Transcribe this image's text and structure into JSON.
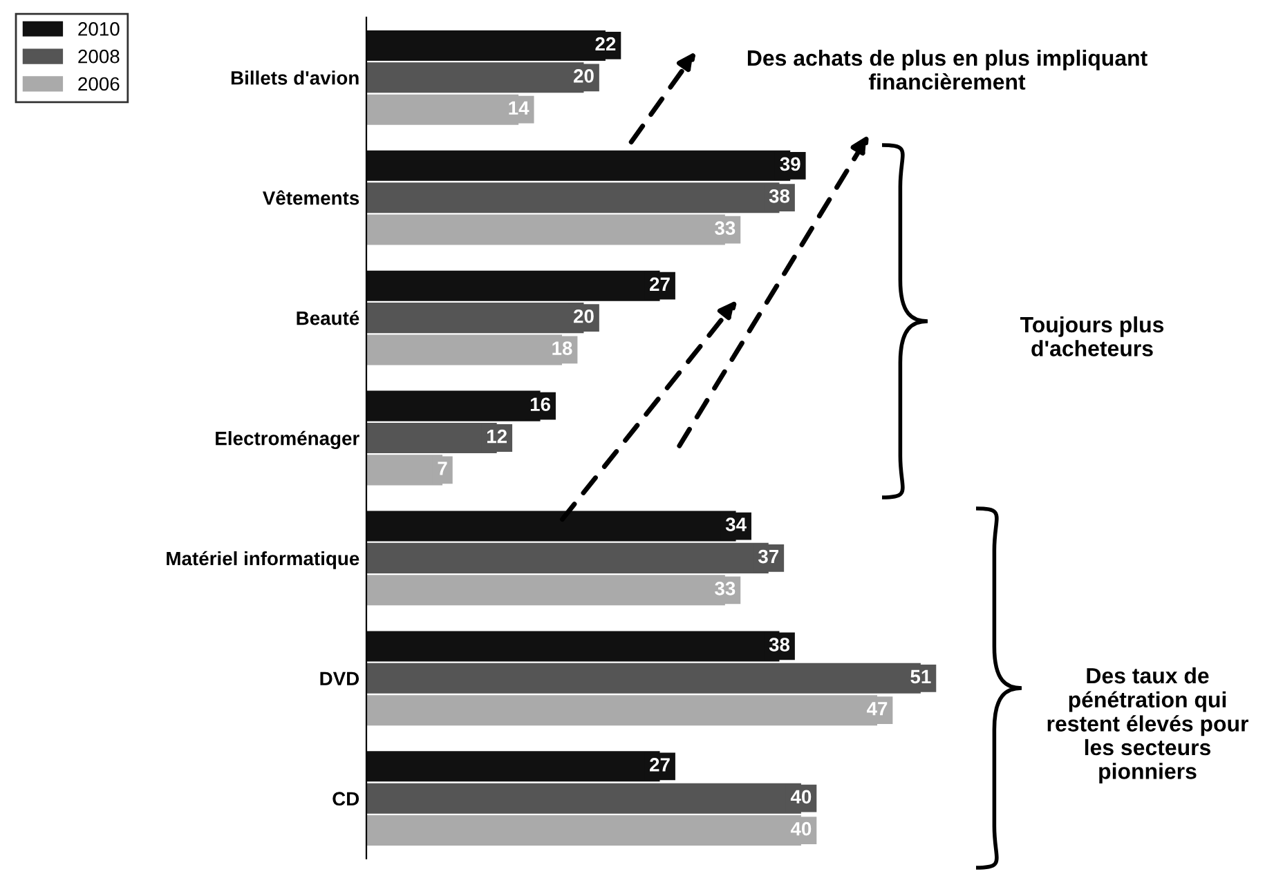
{
  "chart_data": {
    "type": "bar",
    "orientation": "horizontal",
    "categories": [
      "Billets d'avion",
      "Vêtements",
      "Beauté",
      "Electroménager",
      "Matériel informatique",
      "DVD",
      "CD"
    ],
    "series": [
      {
        "name": "2010",
        "color": "#111111",
        "values": [
          22,
          39,
          27,
          16,
          34,
          38,
          27
        ]
      },
      {
        "name": "2008",
        "color": "#555555",
        "values": [
          20,
          38,
          20,
          12,
          37,
          51,
          40
        ]
      },
      {
        "name": "2006",
        "color": "#aaaaaa",
        "values": [
          14,
          33,
          18,
          7,
          33,
          47,
          40
        ]
      }
    ],
    "data_labels": true,
    "legend": "top left",
    "grid": false,
    "annotations": [
      "Des achats de plus en plus impliquant financièrement",
      "Toujours plus d'acheteurs",
      "Des taux de pénétration qui restent élevés pour les secteurs pionniers"
    ]
  }
}
